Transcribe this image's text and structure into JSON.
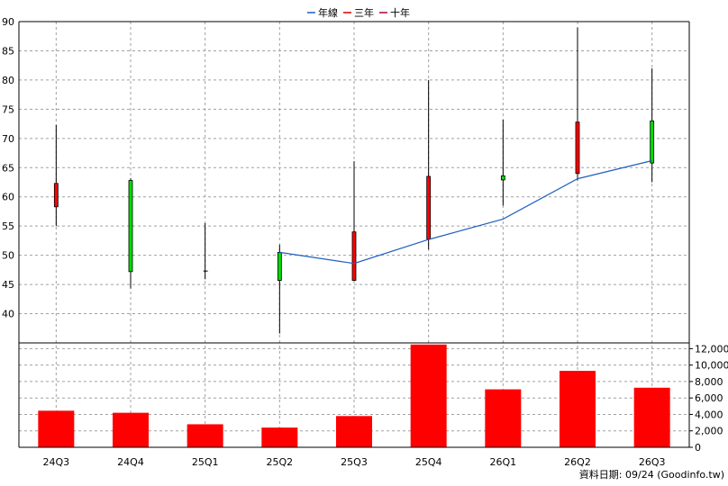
{
  "chart_data": {
    "type": "candlestick+bar",
    "legend": {
      "placement": "top-center",
      "items": [
        {
          "name": "年線",
          "color": "#1f5fbf"
        },
        {
          "name": "三年",
          "color": "#d00000"
        },
        {
          "name": "十年",
          "color": "#b00030"
        }
      ]
    },
    "categories": [
      "24Q3",
      "24Q4",
      "25Q1",
      "25Q2",
      "25Q3",
      "25Q4",
      "26Q1",
      "26Q2",
      "26Q3"
    ],
    "price": {
      "ylim": [
        35,
        90
      ],
      "yticks": [
        40,
        45,
        50,
        55,
        60,
        65,
        70,
        75,
        80,
        85,
        90
      ],
      "candles": [
        {
          "open": 58.3,
          "close": 62.3,
          "high": 72.3,
          "low": 55.0,
          "color": "red"
        },
        {
          "open": 62.8,
          "close": 47.2,
          "high": 63.2,
          "low": 44.3,
          "color": "green"
        },
        {
          "open": 47.3,
          "close": 47.2,
          "high": 55.5,
          "low": 45.9,
          "color": "black"
        },
        {
          "open": 45.7,
          "close": 50.5,
          "high": 51.8,
          "low": 36.6,
          "color": "green"
        },
        {
          "open": 45.7,
          "close": 54.0,
          "high": 66.1,
          "low": 45.6,
          "color": "red"
        },
        {
          "open": 52.8,
          "close": 63.5,
          "high": 80.0,
          "low": 51.0,
          "color": "red"
        },
        {
          "open": 62.9,
          "close": 63.6,
          "high": 73.2,
          "low": 58.5,
          "color": "green"
        },
        {
          "open": 64.0,
          "close": 72.8,
          "high": 89.0,
          "low": 62.8,
          "color": "red"
        },
        {
          "open": 65.8,
          "close": 73.0,
          "high": 82.0,
          "low": 62.5,
          "color": "green"
        }
      ],
      "annual_line": [
        null,
        null,
        null,
        50.5,
        48.6,
        52.7,
        56.2,
        63.1,
        66.2
      ]
    },
    "volume": {
      "ylim": [
        0,
        12700
      ],
      "yticks": [
        0,
        2000,
        4000,
        6000,
        8000,
        10000,
        12000
      ],
      "ytick_labels": [
        "0",
        "2,000",
        "4,000",
        "6,000",
        "8,000",
        "10,000",
        "12,000"
      ],
      "values": [
        4450,
        4200,
        2800,
        2400,
        3800,
        12500,
        7050,
        9300,
        7250
      ],
      "color": "#ff0000"
    },
    "colors": {
      "up": "#ff0000",
      "down": "#00dd00",
      "annual_line": "#1f5fbf"
    }
  },
  "footer": {
    "source": "資料日期: 09/24  (Goodinfo.tw)"
  }
}
